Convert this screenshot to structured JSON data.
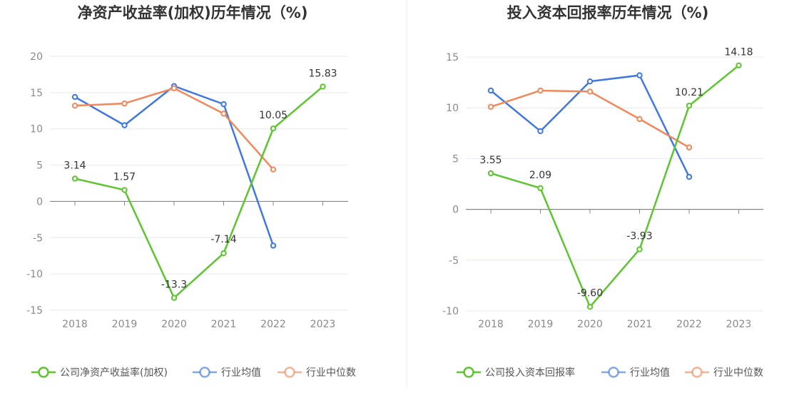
{
  "colors": {
    "company": "#5cc52f",
    "industry_avg": "#3f78e0",
    "industry_median": "#f2875a",
    "grid": "#e6e9f0",
    "axis": "#888888"
  },
  "chart_data": [
    {
      "type": "line",
      "title": "净资产收益率(加权)历年情况（%)",
      "categories": [
        "2018",
        "2019",
        "2020",
        "2021",
        "2022",
        "2023"
      ],
      "ylim": [
        -15,
        20
      ],
      "yticks": [
        20,
        15,
        10,
        5,
        0,
        -5,
        -10,
        -15
      ],
      "legend": "bottom",
      "series": [
        {
          "name": "公司净资产收益率(加权)",
          "values": [
            3.14,
            1.57,
            -13.3,
            -7.14,
            10.05,
            15.83
          ],
          "labels": [
            "3.14",
            "1.57",
            "-13.3",
            "-7.14",
            "10.05",
            "15.83"
          ]
        },
        {
          "name": "行业均值",
          "values": [
            14.4,
            10.5,
            15.9,
            13.4,
            -6.1,
            null
          ]
        },
        {
          "name": "行业中位数",
          "values": [
            13.2,
            13.5,
            15.6,
            12.1,
            4.4,
            null
          ]
        }
      ]
    },
    {
      "type": "line",
      "title": "投入资本回报率历年情况（%)",
      "categories": [
        "2018",
        "2019",
        "2020",
        "2021",
        "2022",
        "2023"
      ],
      "ylim": [
        -10,
        15
      ],
      "yticks": [
        15,
        10,
        5,
        0,
        -5,
        -10
      ],
      "legend": "bottom",
      "series": [
        {
          "name": "公司投入资本回报率",
          "values": [
            3.55,
            2.09,
            -9.6,
            -3.93,
            10.21,
            14.18
          ],
          "labels": [
            "3.55",
            "2.09",
            "-9.60",
            "-3.93",
            "10.21",
            "14.18"
          ]
        },
        {
          "name": "行业均值",
          "values": [
            11.7,
            7.7,
            12.6,
            13.2,
            3.2,
            null
          ]
        },
        {
          "name": "行业中位数",
          "values": [
            10.1,
            11.7,
            11.6,
            8.9,
            6.1,
            null
          ]
        }
      ]
    }
  ]
}
